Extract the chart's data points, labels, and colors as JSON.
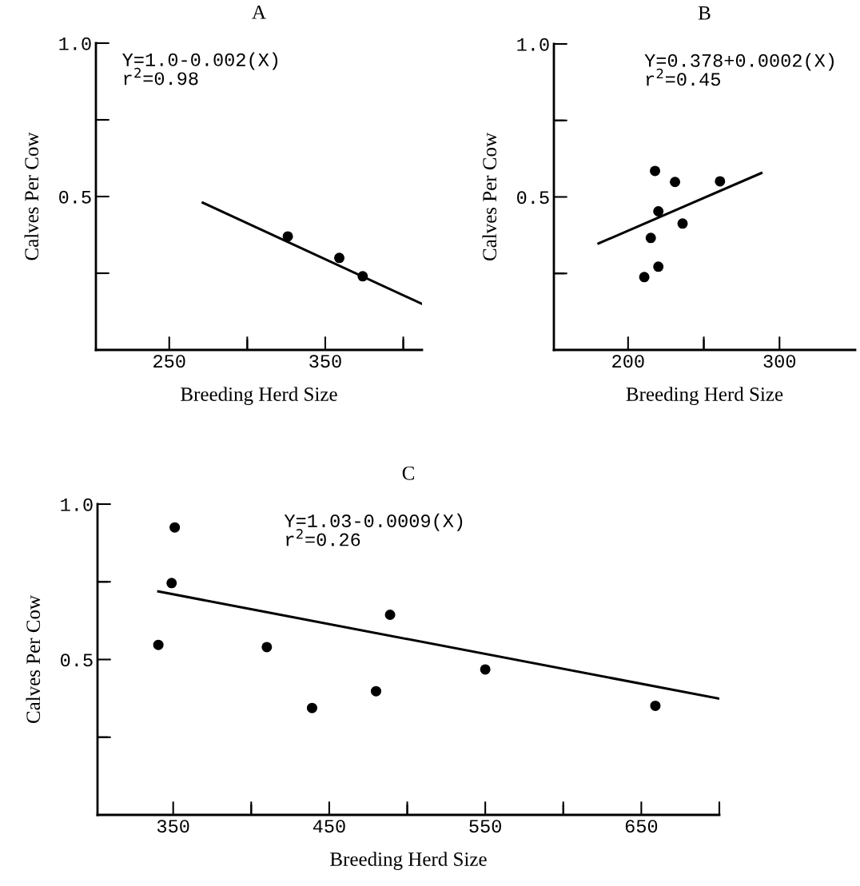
{
  "chart_data": [
    {
      "type": "scatter",
      "title": "A",
      "xlabel": "Breeding Herd Size",
      "ylabel": "Calves Per Cow",
      "xlim": [
        203,
        412
      ],
      "ylim": [
        0,
        1.0
      ],
      "xticks": [
        250,
        {
          "value": 300,
          "label": null
        },
        350,
        {
          "value": 400,
          "label": null
        }
      ],
      "yticks": [
        {
          "value": 0.25,
          "label": null
        },
        {
          "value": 0.5,
          "label": "0.5"
        },
        {
          "value": 0.75,
          "label": null
        },
        {
          "value": 1.0,
          "label": "1.0"
        }
      ],
      "annotations": [
        "Y=1.0-0.002(X)\nr$^{2}$=0.98"
      ],
      "series": [
        {
          "type": "scatter",
          "marker": "circle",
          "color": "#000000",
          "x": [
            326,
            359,
            374
          ],
          "values": [
            0.37,
            0.3,
            0.24
          ]
        },
        {
          "type": "line",
          "color": "#000000",
          "x": [
            271.5,
            412
          ],
          "values": [
            0.48,
            0.15
          ]
        }
      ]
    },
    {
      "type": "scatter",
      "title": "B",
      "xlabel": "Breeding Herd Size",
      "ylabel": "Calves Per Cow",
      "xlim": [
        151,
        350
      ],
      "ylim": [
        0,
        1.0
      ],
      "xticks": [
        200,
        {
          "value": 250,
          "label": null
        },
        300
      ],
      "yticks": [
        {
          "value": 0.25,
          "label": null
        },
        {
          "value": 0.5,
          "label": "0.5"
        },
        {
          "value": 0.75,
          "label": null
        },
        {
          "value": 1.0,
          "label": "1.0"
        }
      ],
      "annotations": [
        "Y=0.378+0.0002(X)\nr$^{2}$=0.45"
      ],
      "series": [
        {
          "type": "scatter",
          "marker": "circle",
          "color": "#000000",
          "x": [
            217.8,
            231,
            260.7,
            220,
            236,
            215,
            220,
            210.7
          ],
          "values": [
            0.585,
            0.549,
            0.551,
            0.453,
            0.413,
            0.366,
            0.272,
            0.238
          ]
        },
        {
          "type": "line",
          "color": "#000000",
          "x": [
            180.5,
            288
          ],
          "values": [
            0.348,
            0.578
          ]
        }
      ]
    },
    {
      "type": "scatter",
      "title": "C",
      "xlabel": "Breeding Herd Size",
      "ylabel": "Calves Per Cow",
      "xlim": [
        301.5,
        700
      ],
      "ylim": [
        0,
        1.0
      ],
      "xticks": [
        350,
        {
          "value": 400,
          "label": null
        },
        450,
        {
          "value": 500,
          "label": null
        },
        550,
        {
          "value": 600,
          "label": null
        },
        650,
        {
          "value": 700,
          "label": null
        }
      ],
      "yticks": [
        {
          "value": 0.25,
          "label": null
        },
        {
          "value": 0.5,
          "label": "0.5"
        },
        {
          "value": 0.75,
          "label": null
        },
        {
          "value": 1.0,
          "label": "1.0"
        }
      ],
      "annotations": [
        "Y=1.03-0.0009(X)\nr$^{2}$=0.26"
      ],
      "series": [
        {
          "type": "scatter",
          "marker": "circle",
          "color": "#000000",
          "x": [
            351,
            349,
            340.5,
            410,
            439,
            480,
            489,
            550,
            659
          ],
          "values": [
            0.925,
            0.746,
            0.547,
            0.54,
            0.344,
            0.398,
            0.644,
            0.468,
            0.351
          ]
        },
        {
          "type": "line",
          "color": "#000000",
          "x": [
            340.5,
            700
          ],
          "values": [
            0.719,
            0.374
          ]
        }
      ]
    }
  ]
}
